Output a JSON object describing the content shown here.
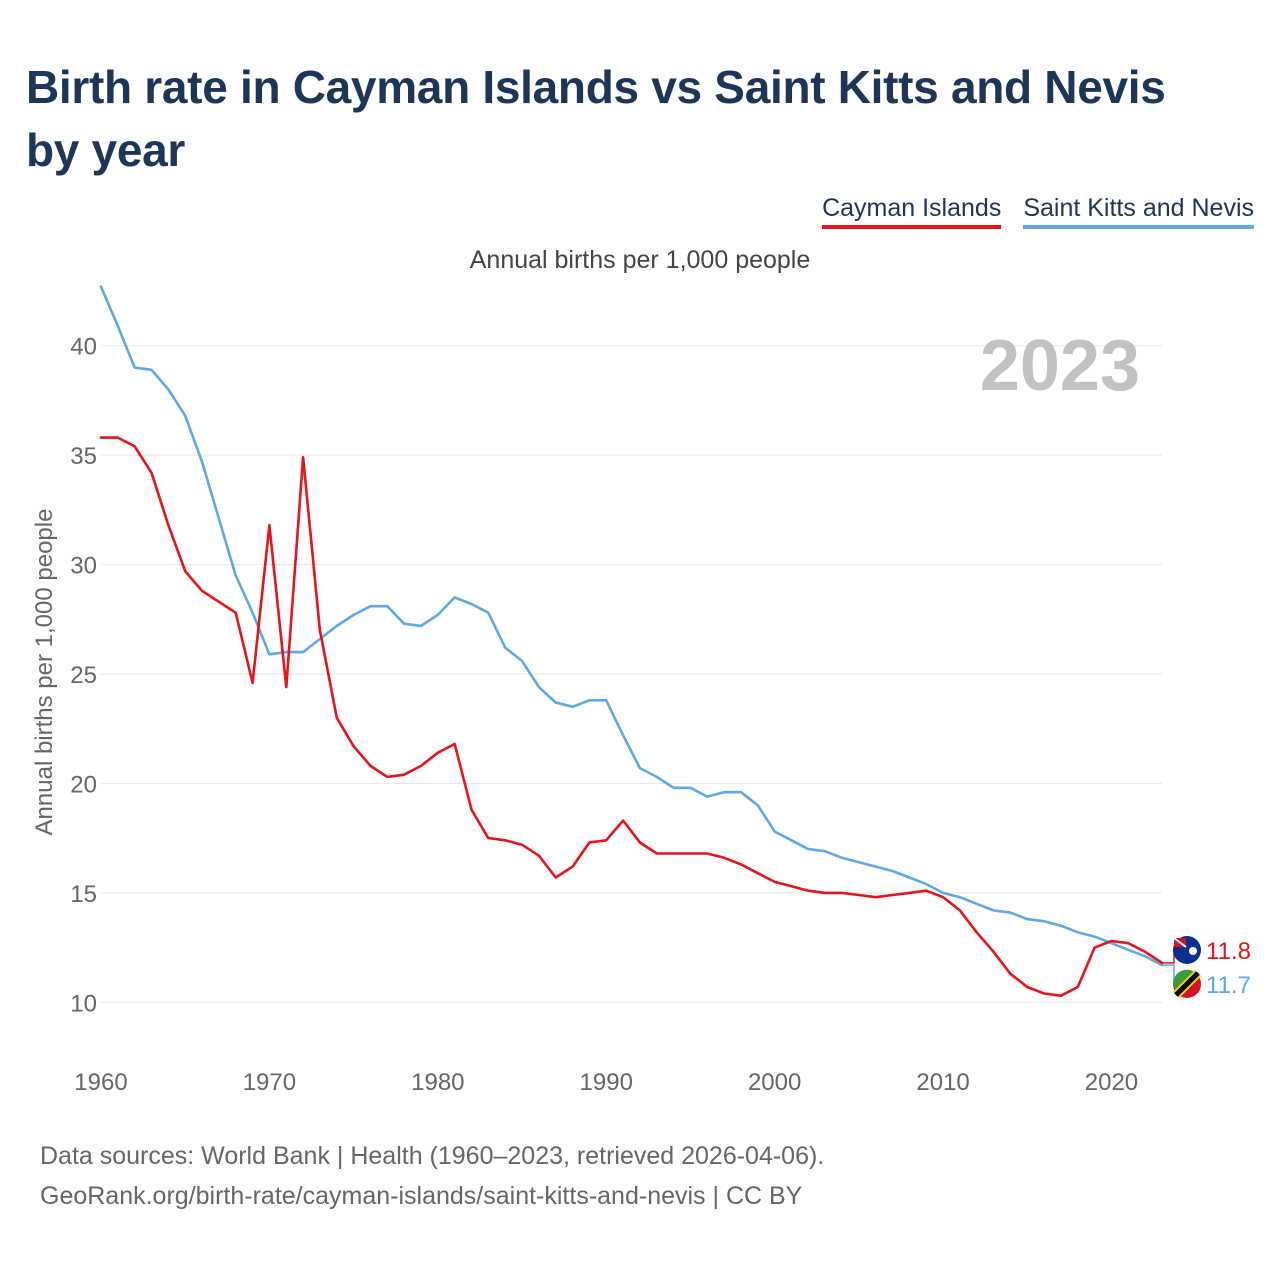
{
  "title": "Birth rate in Cayman Islands vs Saint Kitts and Nevis by year",
  "subtitle": "Annual births per 1,000 people",
  "year_label": "2023",
  "footer": {
    "line1": "Data sources: World Bank | Health (1960–2023, retrieved 2026-04-06).",
    "line2": "GeoRank.org/birth-rate/cayman-islands/saint-kitts-and-nevis | CC BY"
  },
  "chart_data": {
    "type": "line",
    "title": "Birth rate in Cayman Islands vs Saint Kitts and Nevis by year",
    "xlabel": "",
    "ylabel": "Annual births per 1,000 people",
    "xlim": [
      1960,
      2023
    ],
    "ylim": [
      7.5,
      42.5
    ],
    "x_ticks": [
      1960,
      1970,
      1980,
      1990,
      2000,
      2010,
      2020
    ],
    "y_ticks": [
      10,
      15,
      20,
      25,
      30,
      35,
      40
    ],
    "grid": true,
    "legend": "top-right",
    "x": [
      1960,
      1961,
      1962,
      1963,
      1964,
      1965,
      1966,
      1967,
      1968,
      1969,
      1970,
      1971,
      1972,
      1973,
      1974,
      1975,
      1976,
      1977,
      1978,
      1979,
      1980,
      1981,
      1982,
      1983,
      1984,
      1985,
      1986,
      1987,
      1988,
      1989,
      1990,
      1991,
      1992,
      1993,
      1994,
      1995,
      1996,
      1997,
      1998,
      1999,
      2000,
      2001,
      2002,
      2003,
      2004,
      2005,
      2006,
      2007,
      2008,
      2009,
      2010,
      2011,
      2012,
      2013,
      2014,
      2015,
      2016,
      2017,
      2018,
      2019,
      2020,
      2021,
      2022,
      2023
    ],
    "series": [
      {
        "name": "Cayman Islands",
        "color": "#e8131b",
        "end_label": "11.8",
        "values": [
          35.8,
          35.8,
          35.4,
          34.2,
          31.8,
          29.7,
          28.8,
          28.3,
          27.8,
          24.6,
          31.8,
          24.4,
          34.9,
          27.0,
          23.0,
          21.7,
          20.8,
          20.3,
          20.4,
          20.8,
          21.4,
          21.8,
          18.8,
          17.5,
          17.4,
          17.2,
          16.7,
          15.7,
          16.2,
          17.3,
          17.4,
          18.3,
          17.3,
          16.8,
          16.8,
          16.8,
          16.8,
          16.6,
          16.3,
          15.9,
          15.5,
          15.3,
          15.1,
          15.0,
          15.0,
          14.9,
          14.8,
          14.9,
          15.0,
          15.1,
          14.8,
          14.2,
          13.2,
          12.3,
          11.3,
          10.7,
          10.4,
          10.3,
          10.7,
          12.5,
          12.8,
          12.7,
          12.3,
          11.8
        ]
      },
      {
        "name": "Saint Kitts and Nevis",
        "color": "#5da9e9",
        "end_label": "11.7",
        "values": [
          42.7,
          40.9,
          39.0,
          38.9,
          38.0,
          36.8,
          34.7,
          32.1,
          29.5,
          27.8,
          25.9,
          26.0,
          26.0,
          26.6,
          27.2,
          27.7,
          28.1,
          28.1,
          27.3,
          27.2,
          27.7,
          28.5,
          28.2,
          27.8,
          26.2,
          25.6,
          24.4,
          23.7,
          23.5,
          23.8,
          23.8,
          22.2,
          20.7,
          20.3,
          19.8,
          19.8,
          19.4,
          19.6,
          19.6,
          19.0,
          17.8,
          17.4,
          17.0,
          16.9,
          16.6,
          16.4,
          16.2,
          16.0,
          15.7,
          15.4,
          15.0,
          14.8,
          14.5,
          14.2,
          14.1,
          13.8,
          13.7,
          13.5,
          13.2,
          13.0,
          12.7,
          12.4,
          12.1,
          11.7
        ]
      }
    ]
  }
}
